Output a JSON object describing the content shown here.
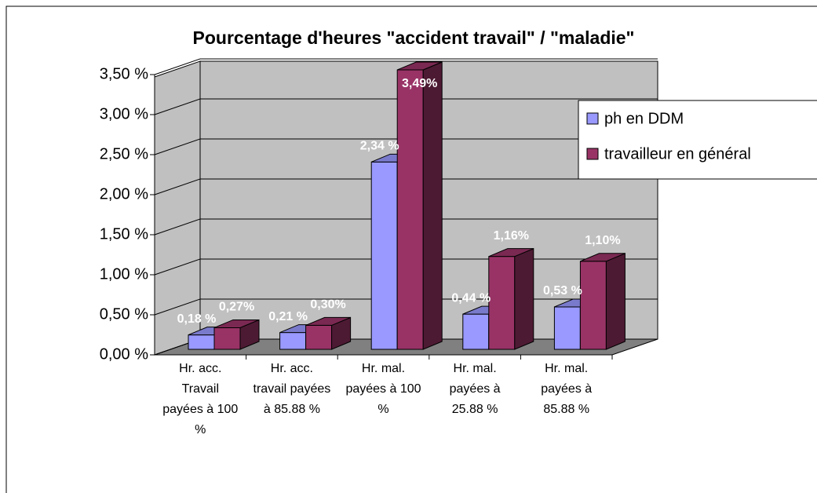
{
  "chart_data": {
    "type": "bar3d",
    "title": "Pourcentage d'heures \"accident travail\" / \"maladie\"",
    "categories": [
      "Hr. acc. Travail payées à 100 %",
      "Hr. acc. travail payées à 85.88 %",
      "Hr. mal. payées à 100 %",
      "Hr. mal. payées à 25.88 %",
      "Hr. mal. payées à 85.88 %"
    ],
    "series": [
      {
        "name": "ph en DDM",
        "color": "#9999ff",
        "values": [
          0.18,
          0.21,
          2.34,
          0.44,
          0.53
        ],
        "value_labels": [
          "0,18 %",
          "0,21 %",
          "2,34 %",
          "0,44 %",
          "0,53 %"
        ]
      },
      {
        "name": "travailleur en général",
        "color": "#993366",
        "values": [
          0.27,
          0.3,
          3.49,
          1.16,
          1.1
        ],
        "value_labels": [
          "0,27%",
          "0,30%",
          "3,49%",
          "1,16%",
          "1,10%"
        ]
      }
    ],
    "ylim": [
      0,
      3.5
    ],
    "yticks": [
      {
        "value": 0,
        "label": "0,00 %"
      },
      {
        "value": 0.5,
        "label": "0,50 %"
      },
      {
        "value": 1,
        "label": "1,00 %"
      },
      {
        "value": 1.5,
        "label": "1,50 %"
      },
      {
        "value": 2,
        "label": "2,00 %"
      },
      {
        "value": 2.5,
        "label": "2,50 %"
      },
      {
        "value": 3,
        "label": "3,00 %"
      },
      {
        "value": 3.5,
        "label": "3,50 %"
      }
    ],
    "grid": true,
    "legend": "right"
  }
}
